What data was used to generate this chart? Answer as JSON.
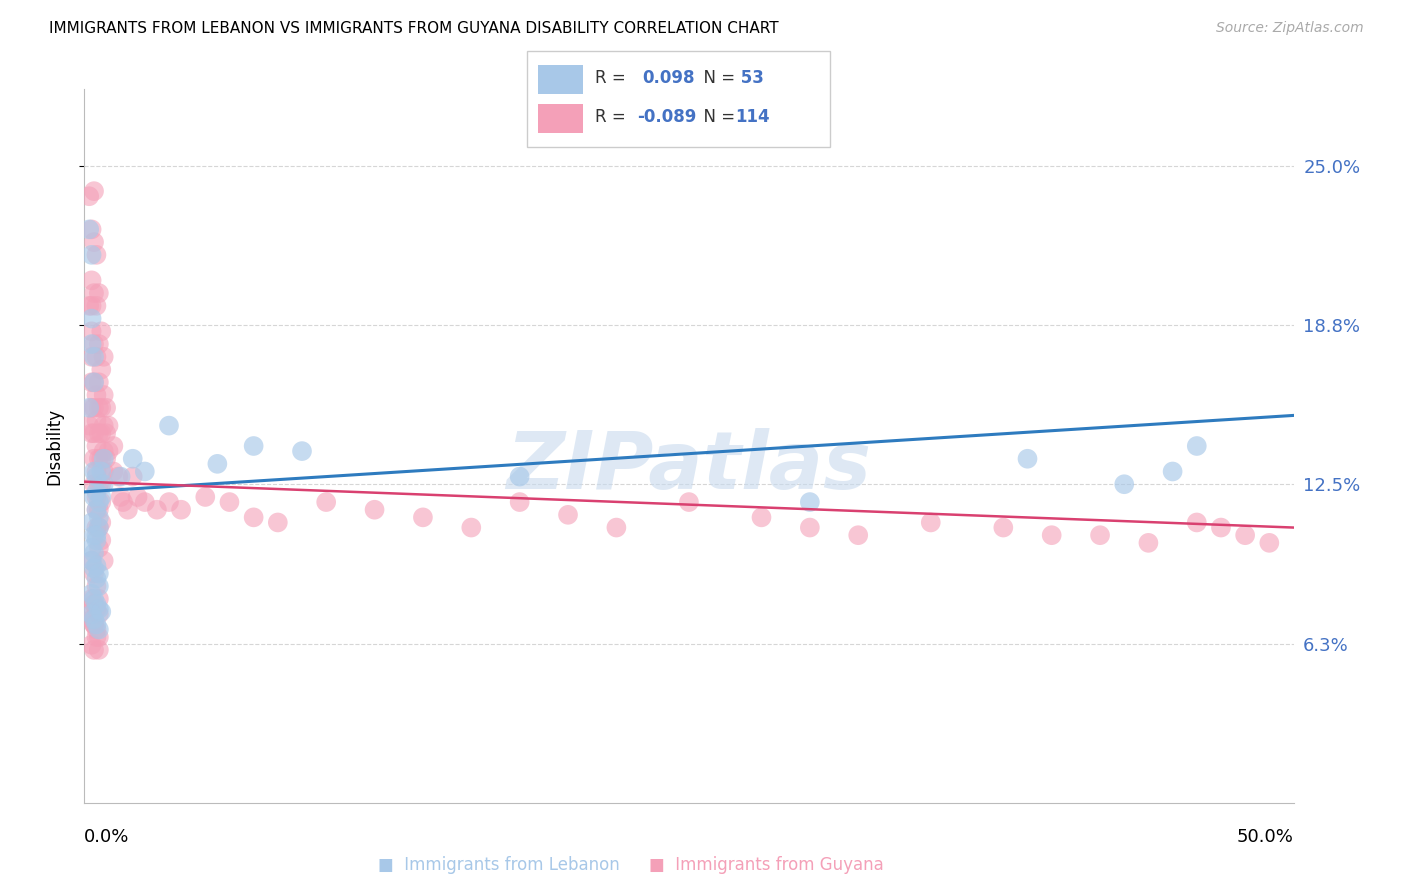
{
  "title": "IMMIGRANTS FROM LEBANON VS IMMIGRANTS FROM GUYANA DISABILITY CORRELATION CHART",
  "source": "Source: ZipAtlas.com",
  "ylabel": "Disability",
  "ytick_vals": [
    0.0625,
    0.125,
    0.1875,
    0.25
  ],
  "ytick_labels": [
    "6.3%",
    "12.5%",
    "18.8%",
    "25.0%"
  ],
  "xlim": [
    0.0,
    0.5
  ],
  "ylim": [
    0.0,
    0.28
  ],
  "color_lebanon": "#a8c8e8",
  "color_guyana": "#f4a0b8",
  "trend_color_lebanon": "#2e7bbf",
  "trend_color_guyana": "#d94070",
  "watermark": "ZIPatlas",
  "lebanon_r": 0.098,
  "lebanon_n": 53,
  "guyana_r": -0.089,
  "guyana_n": 114,
  "lebanon_trend_x0": 0.0,
  "lebanon_trend_y0": 0.122,
  "lebanon_trend_x1": 0.5,
  "lebanon_trend_y1": 0.152,
  "guyana_trend_x0": 0.0,
  "guyana_trend_y0": 0.126,
  "guyana_trend_x1": 0.5,
  "guyana_trend_y1": 0.108,
  "lebanon_x": [
    0.002,
    0.002,
    0.003,
    0.003,
    0.003,
    0.004,
    0.004,
    0.004,
    0.004,
    0.005,
    0.005,
    0.005,
    0.005,
    0.006,
    0.006,
    0.006,
    0.007,
    0.007,
    0.008,
    0.008,
    0.003,
    0.003,
    0.004,
    0.004,
    0.005,
    0.005,
    0.006,
    0.006,
    0.003,
    0.004,
    0.005,
    0.006,
    0.003,
    0.004,
    0.005,
    0.006,
    0.007,
    0.003,
    0.004,
    0.005,
    0.015,
    0.02,
    0.025,
    0.035,
    0.055,
    0.07,
    0.09,
    0.18,
    0.3,
    0.39,
    0.43,
    0.45,
    0.46
  ],
  "lebanon_y": [
    0.225,
    0.155,
    0.215,
    0.18,
    0.19,
    0.175,
    0.165,
    0.13,
    0.12,
    0.128,
    0.122,
    0.115,
    0.105,
    0.118,
    0.112,
    0.108,
    0.13,
    0.12,
    0.135,
    0.125,
    0.1,
    0.095,
    0.098,
    0.092,
    0.088,
    0.093,
    0.085,
    0.09,
    0.082,
    0.08,
    0.078,
    0.076,
    0.074,
    0.072,
    0.07,
    0.068,
    0.075,
    0.11,
    0.105,
    0.103,
    0.128,
    0.135,
    0.13,
    0.148,
    0.133,
    0.14,
    0.138,
    0.128,
    0.118,
    0.135,
    0.125,
    0.13,
    0.14
  ],
  "guyana_x": [
    0.002,
    0.002,
    0.002,
    0.003,
    0.003,
    0.003,
    0.003,
    0.003,
    0.003,
    0.003,
    0.003,
    0.004,
    0.004,
    0.004,
    0.004,
    0.004,
    0.004,
    0.004,
    0.004,
    0.004,
    0.005,
    0.005,
    0.005,
    0.005,
    0.005,
    0.005,
    0.005,
    0.005,
    0.005,
    0.005,
    0.006,
    0.006,
    0.006,
    0.006,
    0.006,
    0.006,
    0.006,
    0.006,
    0.006,
    0.006,
    0.007,
    0.007,
    0.007,
    0.007,
    0.007,
    0.007,
    0.007,
    0.007,
    0.007,
    0.008,
    0.008,
    0.008,
    0.008,
    0.008,
    0.008,
    0.009,
    0.009,
    0.009,
    0.01,
    0.01,
    0.012,
    0.012,
    0.014,
    0.015,
    0.016,
    0.018,
    0.02,
    0.022,
    0.025,
    0.03,
    0.035,
    0.04,
    0.05,
    0.06,
    0.07,
    0.08,
    0.1,
    0.12,
    0.14,
    0.16,
    0.18,
    0.2,
    0.22,
    0.25,
    0.28,
    0.3,
    0.32,
    0.35,
    0.38,
    0.4,
    0.42,
    0.44,
    0.46,
    0.47,
    0.48,
    0.49,
    0.003,
    0.004,
    0.005,
    0.006,
    0.003,
    0.004,
    0.005,
    0.006,
    0.003,
    0.004,
    0.005,
    0.006,
    0.003,
    0.004,
    0.005,
    0.006,
    0.003,
    0.004
  ],
  "guyana_y": [
    0.148,
    0.238,
    0.195,
    0.225,
    0.205,
    0.195,
    0.185,
    0.175,
    0.165,
    0.155,
    0.145,
    0.24,
    0.22,
    0.2,
    0.18,
    0.165,
    0.155,
    0.145,
    0.135,
    0.125,
    0.215,
    0.195,
    0.175,
    0.16,
    0.15,
    0.14,
    0.13,
    0.12,
    0.115,
    0.108,
    0.2,
    0.18,
    0.165,
    0.155,
    0.145,
    0.135,
    0.125,
    0.115,
    0.108,
    0.1,
    0.185,
    0.17,
    0.155,
    0.145,
    0.135,
    0.125,
    0.118,
    0.11,
    0.103,
    0.095,
    0.175,
    0.16,
    0.148,
    0.138,
    0.13,
    0.155,
    0.145,
    0.135,
    0.148,
    0.138,
    0.14,
    0.13,
    0.128,
    0.12,
    0.118,
    0.115,
    0.128,
    0.12,
    0.118,
    0.115,
    0.118,
    0.115,
    0.12,
    0.118,
    0.112,
    0.11,
    0.118,
    0.115,
    0.112,
    0.108,
    0.118,
    0.113,
    0.108,
    0.118,
    0.112,
    0.108,
    0.105,
    0.11,
    0.108,
    0.105,
    0.105,
    0.102,
    0.11,
    0.108,
    0.105,
    0.102,
    0.095,
    0.09,
    0.085,
    0.08,
    0.075,
    0.07,
    0.065,
    0.06,
    0.08,
    0.078,
    0.076,
    0.074,
    0.072,
    0.07,
    0.068,
    0.065,
    0.062,
    0.06
  ]
}
